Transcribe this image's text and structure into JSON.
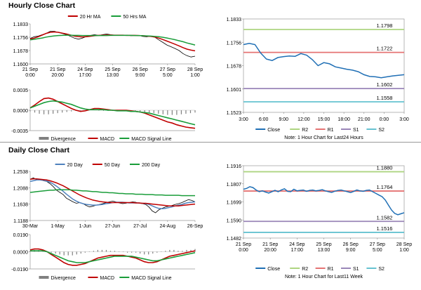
{
  "hourly": {
    "title": "Hourly Close Chart",
    "note": "Note: 1 Hour Chart for Last24 Hours"
  },
  "daily": {
    "title": "Daily Close Chart",
    "note": "Note: 1 Hour Chart for Last11 Week"
  },
  "colors": {
    "close": "#1f6fb5",
    "r2": "#aed581",
    "r1": "#e57373",
    "s1": "#9a86b8",
    "s2": "#66c2d0",
    "ma_red": "#c00000",
    "ma_green": "#1a9d3a",
    "ma_blue": "#4f81bd",
    "price_black": "#000000",
    "divergence": "#808080"
  },
  "chart_data": [
    {
      "id": "hourly_price",
      "type": "line",
      "legend": [
        "20 Hr MA",
        "50 Hrs MA"
      ],
      "y_ticks": [
        "1.1833",
        "1.1756",
        "1.1678",
        "1.1600"
      ],
      "ylim": [
        1.16,
        1.1833
      ],
      "x_labels": [
        [
          "21 Sep",
          "0:00"
        ],
        [
          "21 Sep",
          "20:00"
        ],
        [
          "24 Sep",
          "17:00"
        ],
        [
          "25 Sep",
          "13:00"
        ],
        [
          "26 Sep",
          "9:00"
        ],
        [
          "27 Sep",
          "5:00"
        ],
        [
          "28 Sep",
          "1:00"
        ]
      ],
      "series": [
        {
          "name": "Price",
          "color": "#000000",
          "values": [
            1.1748,
            1.1758,
            1.1762,
            1.177,
            1.1778,
            1.179,
            1.179,
            1.1783,
            1.1777,
            1.177,
            1.1761,
            1.175,
            1.1744,
            1.175,
            1.176,
            1.1766,
            1.177,
            1.1766,
            1.177,
            1.1774,
            1.177,
            1.1767,
            1.1766,
            1.1766,
            1.1768,
            1.1764,
            1.1765,
            1.1766,
            1.176,
            1.1758,
            1.1762,
            1.1755,
            1.174,
            1.1725,
            1.171,
            1.17,
            1.169,
            1.1678,
            1.166,
            1.1648,
            1.164,
            1.1645
          ]
        },
        {
          "name": "20 Hr MA",
          "color": "#c00000",
          "values": [
            1.1745,
            1.175,
            1.1758,
            1.1768,
            1.1778,
            1.1784,
            1.1786,
            1.1784,
            1.1779,
            1.1774,
            1.1768,
            1.1762,
            1.1759,
            1.1757,
            1.1758,
            1.1761,
            1.1764,
            1.1766,
            1.1767,
            1.1768,
            1.1768,
            1.1767,
            1.1767,
            1.1767,
            1.1766,
            1.1766,
            1.1766,
            1.1765,
            1.1764,
            1.1762,
            1.176,
            1.1756,
            1.175,
            1.1742,
            1.1733,
            1.1724,
            1.1715,
            1.1705,
            1.1695,
            1.1686,
            1.168,
            1.1676
          ]
        },
        {
          "name": "50 Hrs MA",
          "color": "#1a9d3a",
          "values": [
            1.174,
            1.1743,
            1.1747,
            1.1751,
            1.1756,
            1.176,
            1.1763,
            1.1765,
            1.1766,
            1.1767,
            1.1767,
            1.1766,
            1.1766,
            1.1765,
            1.1765,
            1.1765,
            1.1765,
            1.1765,
            1.1765,
            1.1765,
            1.1766,
            1.1766,
            1.1766,
            1.1766,
            1.1766,
            1.1766,
            1.1765,
            1.1765,
            1.1764,
            1.1763,
            1.1762,
            1.176,
            1.1758,
            1.1755,
            1.1751,
            1.1746,
            1.1741,
            1.1735,
            1.1729,
            1.1722,
            1.1716,
            1.171
          ]
        }
      ]
    },
    {
      "id": "hourly_macd",
      "type": "line",
      "legend": [
        "Divergence",
        "MACD",
        "MACD Signal Line"
      ],
      "y_ticks": [
        "0.0035",
        "0.0000",
        "-0.0035"
      ],
      "ylim": [
        -0.0035,
        0.0035
      ],
      "divergence": [
        -0.0002,
        -0.0004,
        -0.0006,
        -0.0007,
        -0.0007,
        -0.0006,
        -0.0005,
        -0.0004,
        -0.0003,
        -0.0002,
        -0.0001,
        -0.0001,
        0.0,
        0.0001,
        0.0001,
        0.0,
        -0.0001,
        -0.0001,
        -0.0001,
        -0.0001,
        0.0,
        0.0,
        0.0,
        -0.0001,
        -0.0002,
        -0.0003,
        -0.0004,
        -0.0005,
        -0.0006,
        -0.0007,
        -0.0008,
        -0.0008,
        -0.0008,
        -0.0007,
        -0.0006,
        -0.0005,
        -0.0004
      ],
      "series": [
        {
          "name": "MACD",
          "color": "#c00000",
          "values": [
            0.0004,
            0.0009,
            0.0015,
            0.002,
            0.0021,
            0.0019,
            0.0015,
            0.0011,
            0.0007,
            0.0003,
            0.0,
            -0.0002,
            -0.0001,
            0.0001,
            0.0003,
            0.0003,
            0.0002,
            0.0001,
            0.0,
            0.0,
            0.0,
            0.0,
            -0.0001,
            -0.0002,
            -0.0003,
            -0.0005,
            -0.0008,
            -0.0011,
            -0.0014,
            -0.0017,
            -0.002,
            -0.0022,
            -0.0025,
            -0.0027,
            -0.0029,
            -0.003,
            -0.0031
          ]
        },
        {
          "name": "MACD Signal Line",
          "color": "#1a9d3a",
          "values": [
            0.0004,
            0.0007,
            0.001,
            0.0013,
            0.0015,
            0.0016,
            0.0015,
            0.0014,
            0.0012,
            0.001,
            0.0007,
            0.0004,
            0.0002,
            0.0001,
            0.0001,
            0.0001,
            0.0001,
            0.0,
            0.0,
            -0.0001,
            -0.0001,
            -0.0001,
            -0.0002,
            -0.0002,
            -0.0003,
            -0.0004,
            -0.0005,
            -0.0007,
            -0.0009,
            -0.0011,
            -0.0013,
            -0.0015,
            -0.0017,
            -0.0019,
            -0.0021,
            -0.0023,
            -0.0025
          ]
        }
      ]
    },
    {
      "id": "hourly_pivot",
      "type": "line",
      "legend": [
        "Close",
        "R2",
        "R1",
        "S1",
        "S2"
      ],
      "y_ticks": [
        "1.1833",
        "1.1756",
        "1.1678",
        "1.1601",
        "1.1523"
      ],
      "ylim": [
        1.1523,
        1.1833
      ],
      "x_labels": [
        "3:00",
        "6:00",
        "9:00",
        "12:00",
        "15:00",
        "18:00",
        "21:00",
        "0:00",
        "3:00"
      ],
      "levels": [
        {
          "name": "R2",
          "value": 1.1798,
          "label": "1.1798"
        },
        {
          "name": "R1",
          "value": 1.1722,
          "label": "1.1722"
        },
        {
          "name": "S1",
          "value": 1.1602,
          "label": "1.1602"
        },
        {
          "name": "S2",
          "value": 1.1558,
          "label": "1.1558"
        }
      ],
      "series": [
        {
          "name": "Close",
          "color": "#1f6fb5",
          "values": [
            1.1748,
            1.1752,
            1.1748,
            1.172,
            1.17,
            1.1695,
            1.1705,
            1.1708,
            1.171,
            1.1709,
            1.1718,
            1.1713,
            1.1698,
            1.1678,
            1.1688,
            1.1684,
            1.1674,
            1.167,
            1.1666,
            1.1663,
            1.1658,
            1.1648,
            1.1642,
            1.1641,
            1.1638,
            1.1641,
            1.1644,
            1.1646,
            1.1648
          ]
        }
      ]
    },
    {
      "id": "daily_price",
      "type": "line",
      "legend": [
        "20 Day",
        "50 Day",
        "200 Day"
      ],
      "y_ticks": [
        "1.2538",
        "1.2088",
        "1.1638",
        "1.1188"
      ],
      "ylim": [
        1.1188,
        1.2538
      ],
      "x_labels": [
        "30-Mar",
        "1-May",
        "1-Jun",
        "27-Jun",
        "27-Jul",
        "24-Aug",
        "26-Sep"
      ],
      "series": [
        {
          "name": "Price",
          "color": "#000000",
          "values": [
            1.232,
            1.236,
            1.23,
            1.232,
            1.228,
            1.226,
            1.22,
            1.212,
            1.202,
            1.196,
            1.19,
            1.18,
            1.175,
            1.17,
            1.166,
            1.168,
            1.165,
            1.16,
            1.156,
            1.158,
            1.161,
            1.163,
            1.165,
            1.168,
            1.17,
            1.172,
            1.17,
            1.167,
            1.165,
            1.166,
            1.168,
            1.17,
            1.169,
            1.166,
            1.165,
            1.163,
            1.156,
            1.145,
            1.14,
            1.148,
            1.152,
            1.156,
            1.158,
            1.16,
            1.163,
            1.165,
            1.168,
            1.172,
            1.176,
            1.174,
            1.17
          ]
        },
        {
          "name": "20 Day",
          "color": "#4f81bd",
          "values": [
            1.226,
            1.228,
            1.23,
            1.23,
            1.229,
            1.227,
            1.224,
            1.219,
            1.213,
            1.206,
            1.199,
            1.191,
            1.184,
            1.177,
            1.172,
            1.168,
            1.165,
            1.163,
            1.162,
            1.161,
            1.161,
            1.162,
            1.163,
            1.165,
            1.166,
            1.168,
            1.169,
            1.169,
            1.169,
            1.168,
            1.167,
            1.167,
            1.167,
            1.167,
            1.166,
            1.165,
            1.163,
            1.159,
            1.155,
            1.152,
            1.151,
            1.152,
            1.154,
            1.156,
            1.159,
            1.161,
            1.163,
            1.166,
            1.168,
            1.169,
            1.17
          ]
        },
        {
          "name": "50 Day",
          "color": "#c00000",
          "values": [
            1.232,
            1.233,
            1.233,
            1.232,
            1.231,
            1.23,
            1.228,
            1.225,
            1.222,
            1.218,
            1.214,
            1.209,
            1.204,
            1.199,
            1.194,
            1.189,
            1.185,
            1.181,
            1.178,
            1.175,
            1.173,
            1.171,
            1.17,
            1.169,
            1.168,
            1.168,
            1.168,
            1.168,
            1.168,
            1.168,
            1.168,
            1.168,
            1.167,
            1.167,
            1.166,
            1.166,
            1.165,
            1.164,
            1.163,
            1.162,
            1.161,
            1.16,
            1.159,
            1.159,
            1.159,
            1.159,
            1.16,
            1.161,
            1.162,
            1.163,
            1.164
          ]
        },
        {
          "name": "200 Day",
          "color": "#1a9d3a",
          "values": [
            1.196,
            1.197,
            1.198,
            1.199,
            1.2,
            1.201,
            1.202,
            1.202,
            1.203,
            1.203,
            1.203,
            1.203,
            1.203,
            1.202,
            1.202,
            1.201,
            1.2,
            1.2,
            1.199,
            1.198,
            1.198,
            1.197,
            1.196,
            1.196,
            1.195,
            1.195,
            1.194,
            1.193,
            1.193,
            1.192,
            1.192,
            1.192,
            1.191,
            1.191,
            1.191,
            1.19,
            1.19,
            1.19,
            1.189,
            1.189,
            1.189,
            1.188,
            1.188,
            1.188,
            1.188,
            1.188,
            1.187,
            1.187,
            1.187,
            1.187,
            1.187
          ]
        }
      ]
    },
    {
      "id": "daily_macd",
      "type": "line",
      "legend": [
        "Divergence",
        "MACD",
        "MACD Signal Line"
      ],
      "y_ticks": [
        "0.0190",
        "0.0000",
        "-0.0190"
      ],
      "ylim": [
        -0.019,
        0.019
      ],
      "divergence": [
        0.001,
        0.002,
        0.002,
        0.001,
        0.0,
        -0.001,
        -0.002,
        -0.003,
        -0.004,
        -0.004,
        -0.004,
        -0.003,
        -0.002,
        -0.001,
        0.0,
        0.001,
        0.002,
        0.002,
        0.002,
        0.001,
        0.001,
        0.0,
        0.0,
        -0.001,
        -0.001,
        -0.001,
        -0.002,
        -0.003,
        -0.003,
        -0.002,
        -0.001,
        0.0,
        0.001,
        0.002,
        0.002,
        0.001,
        0.001,
        0.002,
        0.002,
        0.003
      ],
      "series": [
        {
          "name": "MACD",
          "color": "#c00000",
          "values": [
            0.002,
            0.003,
            0.003,
            0.002,
            0.0,
            -0.003,
            -0.006,
            -0.009,
            -0.012,
            -0.014,
            -0.015,
            -0.015,
            -0.014,
            -0.013,
            -0.011,
            -0.009,
            -0.007,
            -0.006,
            -0.005,
            -0.004,
            -0.004,
            -0.004,
            -0.004,
            -0.005,
            -0.006,
            -0.007,
            -0.009,
            -0.011,
            -0.012,
            -0.012,
            -0.011,
            -0.009,
            -0.007,
            -0.005,
            -0.004,
            -0.003,
            -0.002,
            -0.001,
            0.0,
            0.001
          ]
        },
        {
          "name": "MACD Signal Line",
          "color": "#1a9d3a",
          "values": [
            0.001,
            0.001,
            0.001,
            0.001,
            0.0,
            -0.002,
            -0.004,
            -0.006,
            -0.008,
            -0.01,
            -0.011,
            -0.012,
            -0.012,
            -0.012,
            -0.011,
            -0.01,
            -0.009,
            -0.008,
            -0.007,
            -0.006,
            -0.005,
            -0.005,
            -0.005,
            -0.005,
            -0.005,
            -0.006,
            -0.007,
            -0.008,
            -0.009,
            -0.01,
            -0.01,
            -0.009,
            -0.008,
            -0.007,
            -0.006,
            -0.005,
            -0.004,
            -0.003,
            -0.002,
            -0.001
          ]
        }
      ]
    },
    {
      "id": "daily_pivot",
      "type": "line",
      "legend": [
        "Close",
        "R2",
        "R1",
        "S1",
        "S2"
      ],
      "y_ticks": [
        "1.1916",
        "1.1807",
        "1.1699",
        "1.1590",
        "1.1482"
      ],
      "ylim": [
        1.1482,
        1.1916
      ],
      "x_labels": [
        [
          "21 Sep",
          "0:00"
        ],
        [
          "21 Sep",
          "20:00"
        ],
        [
          "24 Sep",
          "17:00"
        ],
        [
          "25 Sep",
          "13:00"
        ],
        [
          "26 Sep",
          "9:00"
        ],
        [
          "27 Sep",
          "5:00"
        ],
        [
          "28 Sep",
          "1:00"
        ]
      ],
      "levels": [
        {
          "name": "R2",
          "value": 1.188,
          "label": "1.1880"
        },
        {
          "name": "R1",
          "value": 1.1764,
          "label": "1.1764"
        },
        {
          "name": "S1",
          "value": 1.1582,
          "label": "1.1582"
        },
        {
          "name": "S2",
          "value": 1.1516,
          "label": "1.1516"
        }
      ],
      "series": [
        {
          "name": "Close",
          "color": "#1f6fb5",
          "values": [
            1.1775,
            1.178,
            1.179,
            1.1785,
            1.177,
            1.176,
            1.1765,
            1.1758,
            1.1752,
            1.176,
            1.1768,
            1.176,
            1.177,
            1.1778,
            1.1762,
            1.176,
            1.1775,
            1.1765,
            1.1768,
            1.177,
            1.1762,
            1.1768,
            1.177,
            1.1765,
            1.1768,
            1.1772,
            1.1765,
            1.176,
            1.1756,
            1.1763,
            1.1768,
            1.177,
            1.1765,
            1.176,
            1.1755,
            1.1762,
            1.177,
            1.1765,
            1.1762,
            1.1768,
            1.177,
            1.176,
            1.175,
            1.174,
            1.173,
            1.171,
            1.168,
            1.165,
            1.163,
            1.1622,
            1.1628,
            1.1634
          ]
        }
      ]
    }
  ]
}
